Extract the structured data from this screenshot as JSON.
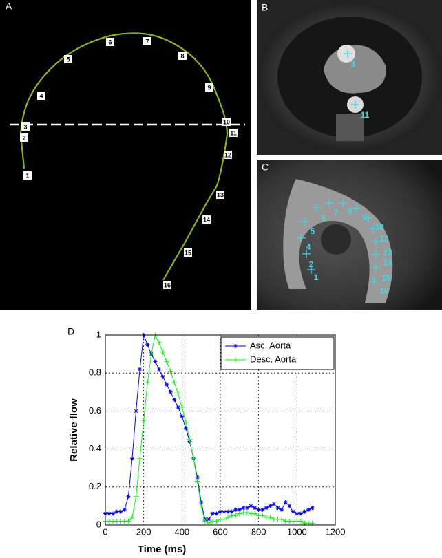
{
  "panel_a": {
    "label": "A",
    "points": [
      "1",
      "2",
      "3",
      "4",
      "5",
      "6",
      "7",
      "8",
      "9",
      "10",
      "11",
      "12",
      "13",
      "14",
      "15",
      "16"
    ]
  },
  "panel_b": {
    "label": "B",
    "points": [
      "3",
      "11"
    ]
  },
  "panel_c": {
    "label": "C",
    "points": [
      "1",
      "2",
      "4",
      "5",
      "6",
      "7",
      "8",
      "9",
      "10",
      "12",
      "13",
      "14",
      "15",
      "16"
    ]
  },
  "chart_data": {
    "type": "line",
    "panel_label": "D",
    "x_label": "Time (ms)",
    "y_label": "Relative flow",
    "x": [
      0,
      20,
      40,
      60,
      80,
      100,
      120,
      140,
      160,
      180,
      200,
      220,
      240,
      260,
      280,
      300,
      320,
      340,
      360,
      380,
      400,
      420,
      440,
      460,
      480,
      500,
      520,
      540,
      560,
      580,
      600,
      620,
      640,
      660,
      680,
      700,
      720,
      740,
      760,
      780,
      800,
      820,
      840,
      860,
      880,
      900,
      920,
      940,
      960,
      980,
      1000,
      1020,
      1040,
      1060,
      1080
    ],
    "series": [
      {
        "name": "Asc. Aorta",
        "color": "#0000ff",
        "marker": "star",
        "values": [
          0.06,
          0.06,
          0.06,
          0.07,
          0.07,
          0.08,
          0.15,
          0.35,
          0.6,
          0.82,
          1,
          0.95,
          0.9,
          0.86,
          0.82,
          0.78,
          0.74,
          0.7,
          0.66,
          0.62,
          0.57,
          0.51,
          0.44,
          0.35,
          0.25,
          0.12,
          0.03,
          0.03,
          0.06,
          0.06,
          0.07,
          0.07,
          0.07,
          0.07,
          0.08,
          0.08,
          0.09,
          0.09,
          0.1,
          0.09,
          0.08,
          0.08,
          0.09,
          0.1,
          0.11,
          0.09,
          0.08,
          0.12,
          0.1,
          0.07,
          0.06,
          0.06,
          0.07,
          0.08,
          0.09
        ]
      },
      {
        "name": "Desc. Aorta",
        "color": "#00ff00",
        "marker": "plus",
        "values": [
          0.02,
          0.02,
          0.02,
          0.02,
          0.02,
          0.02,
          0.02,
          0.04,
          0.15,
          0.35,
          0.55,
          0.75,
          0.9,
          1,
          0.96,
          0.91,
          0.86,
          0.81,
          0.75,
          0.69,
          0.62,
          0.54,
          0.45,
          0.35,
          0.23,
          0.1,
          0.02,
          0.01,
          0.02,
          0.02,
          0.03,
          0.03,
          0.04,
          0.05,
          0.05,
          0.06,
          0.065,
          0.065,
          0.06,
          0.06,
          0.05,
          0.05,
          0.04,
          0.04,
          0.03,
          0.03,
          0.03,
          0.02,
          0.02,
          0.02,
          0.02,
          0.02,
          0.01,
          0.01,
          0.01
        ]
      }
    ],
    "xlim": [
      0,
      1200
    ],
    "xticks": [
      0,
      200,
      400,
      600,
      800,
      1000,
      1200
    ],
    "ylim": [
      0,
      1
    ],
    "yticks": [
      0,
      0.2,
      0.4,
      0.6,
      0.8,
      1
    ],
    "grid": true,
    "legend": "upper right"
  }
}
